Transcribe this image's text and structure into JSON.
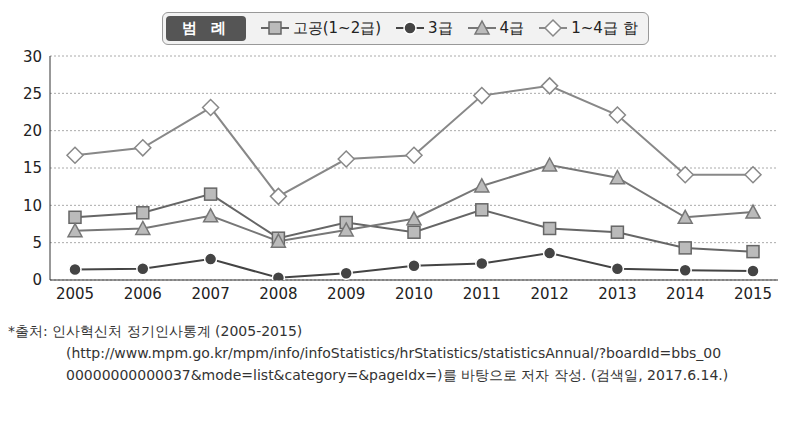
{
  "chart_data": {
    "type": "line",
    "legend_title": "범 례",
    "legend": "top",
    "categories": [
      "2005",
      "2006",
      "2007",
      "2008",
      "2009",
      "2010",
      "2011",
      "2012",
      "2013",
      "2014",
      "2015"
    ],
    "series": [
      {
        "name": "고공(1~2급)",
        "color": "#666666",
        "marker": "square",
        "values": [
          8.4,
          9.0,
          11.5,
          5.6,
          7.7,
          6.4,
          9.4,
          6.9,
          6.4,
          4.3,
          3.8
        ]
      },
      {
        "name": "3급",
        "color": "#444444",
        "marker": "circle",
        "values": [
          1.4,
          1.5,
          2.8,
          0.3,
          0.9,
          1.9,
          2.2,
          3.6,
          1.5,
          1.3,
          1.2
        ]
      },
      {
        "name": "4급",
        "color": "#777777",
        "marker": "triangle",
        "values": [
          6.6,
          6.9,
          8.6,
          5.2,
          6.7,
          8.2,
          12.6,
          15.4,
          13.7,
          8.4,
          9.1
        ]
      },
      {
        "name": "1~4급 합",
        "color": "#888888",
        "marker": "diamond",
        "values": [
          16.7,
          17.7,
          23.1,
          11.2,
          16.2,
          16.7,
          24.7,
          26.0,
          22.1,
          14.1,
          14.1
        ]
      }
    ],
    "ylim": [
      0,
      30
    ],
    "yticks": [
      0,
      5,
      10,
      15,
      20,
      25,
      30
    ],
    "grid": true,
    "source": [
      "*출처: 인사혁신처 정기인사통계 (2005-2015)",
      "(http://www.mpm.go.kr/mpm/info/infoStatistics/hrStatistics/statisticsAnnual/?boardId=bbs_00",
      "00000000000037&mode=list&category=&pageIdx=)를 바탕으로 저자 작성. (검색일, 2017.6.14.)"
    ]
  }
}
